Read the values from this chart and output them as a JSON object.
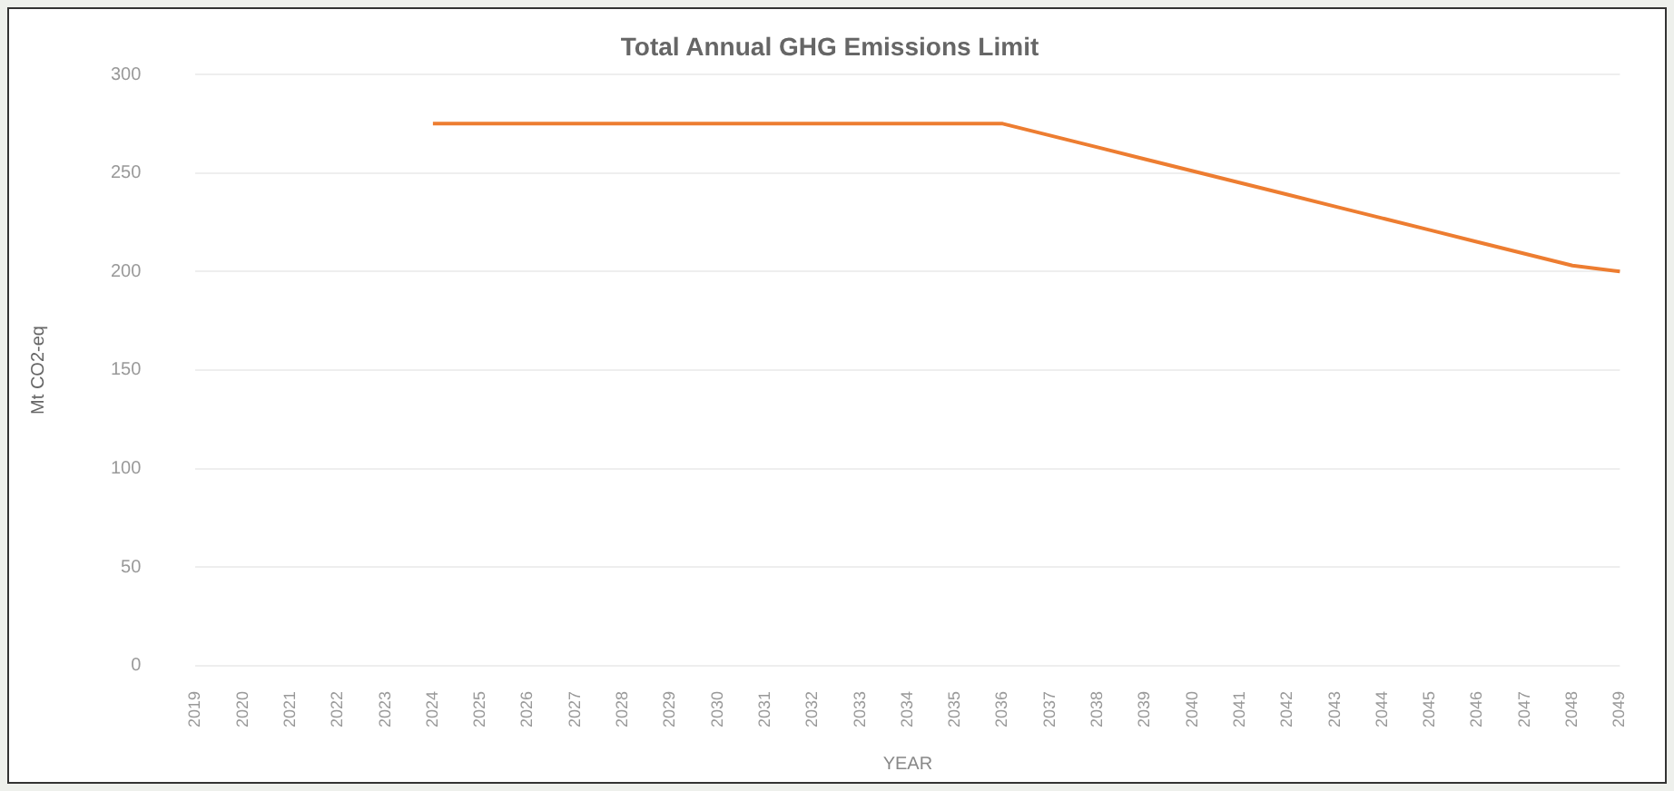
{
  "chart_data": {
    "type": "line",
    "title": "Total Annual GHG Emissions Limit",
    "xlabel": "YEAR",
    "ylabel": "Mt CO2-eq",
    "categories": [
      "2019",
      "2020",
      "2021",
      "2022",
      "2023",
      "2024",
      "2025",
      "2026",
      "2027",
      "2028",
      "2029",
      "2030",
      "2031",
      "2032",
      "2033",
      "2034",
      "2035",
      "2036",
      "2037",
      "2038",
      "2039",
      "2040",
      "2041",
      "2042",
      "2043",
      "2044",
      "2045",
      "2046",
      "2047",
      "2048",
      "2049"
    ],
    "series": [
      {
        "color": "#ed7d31",
        "values": [
          null,
          null,
          null,
          null,
          null,
          275,
          275,
          275,
          275,
          275,
          275,
          275,
          275,
          275,
          275,
          275,
          275,
          275,
          269,
          263,
          257,
          251,
          245,
          239,
          233,
          227,
          221,
          215,
          209,
          203,
          200
        ]
      }
    ],
    "ylim": [
      0,
      300
    ],
    "yticks": [
      0,
      50,
      100,
      150,
      200,
      250,
      300
    ],
    "grid": "y",
    "legend": false,
    "marker": "none",
    "line_style": "solid"
  }
}
